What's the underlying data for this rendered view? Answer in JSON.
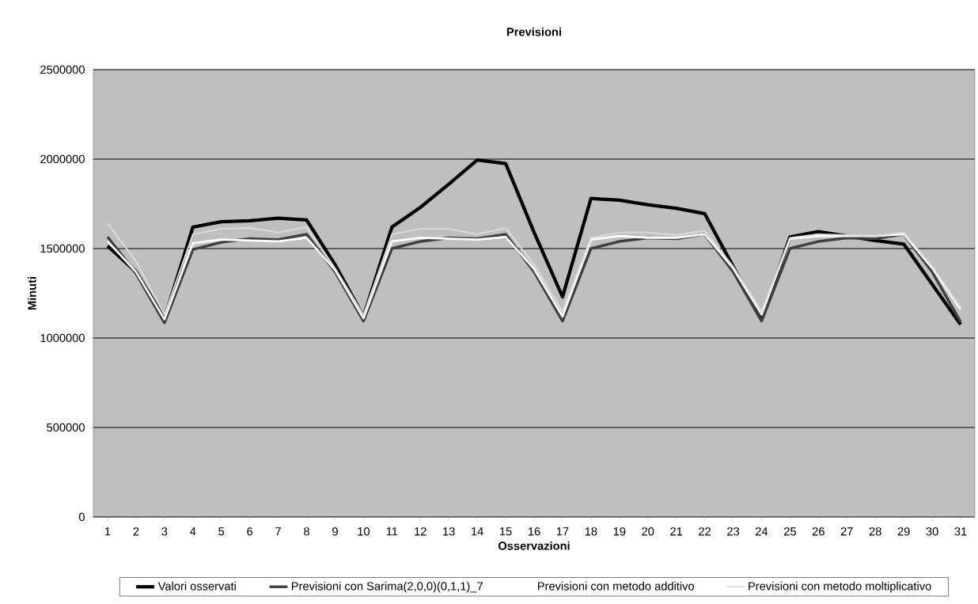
{
  "chart_data": {
    "type": "line",
    "title": "Previsioni",
    "xlabel": "Osservazioni",
    "ylabel": "Minuti",
    "categories": [
      "1",
      "2",
      "3",
      "4",
      "5",
      "6",
      "7",
      "8",
      "9",
      "10",
      "11",
      "12",
      "13",
      "14",
      "15",
      "16",
      "17",
      "18",
      "19",
      "20",
      "21",
      "22",
      "23",
      "24",
      "25",
      "26",
      "27",
      "28",
      "29",
      "30",
      "31"
    ],
    "ylim": [
      0,
      2500000
    ],
    "yticks": [
      0,
      500000,
      1000000,
      1500000,
      2000000,
      2500000
    ],
    "grid": "y",
    "legend": "bottom",
    "series": [
      {
        "name": "Valori osservati",
        "color": "#000000",
        "values": [
          1515000,
          1370000,
          1110000,
          1620000,
          1650000,
          1655000,
          1670000,
          1660000,
          1410000,
          1120000,
          1620000,
          1730000,
          1860000,
          1995000,
          1975000,
          1590000,
          1230000,
          1780000,
          1770000,
          1745000,
          1725000,
          1695000,
          1400000,
          1110000,
          1565000,
          1595000,
          1570000,
          1545000,
          1525000,
          1300000,
          1075000
        ]
      },
      {
        "name": "Previsioni con Sarima(2,0,0)(0,1,1)_7",
        "color": "#404040",
        "values": [
          1565000,
          1360000,
          1085000,
          1495000,
          1535000,
          1555000,
          1550000,
          1580000,
          1370000,
          1095000,
          1500000,
          1540000,
          1560000,
          1555000,
          1580000,
          1370000,
          1095000,
          1500000,
          1540000,
          1560000,
          1555000,
          1580000,
          1370000,
          1095000,
          1500000,
          1540000,
          1560000,
          1555000,
          1580000,
          1370000,
          1090000
        ]
      },
      {
        "name": "Previsioni con metodo additivo",
        "color": "#ffffff",
        "values": [
          1540000,
          1370000,
          1105000,
          1530000,
          1550000,
          1545000,
          1540000,
          1560000,
          1380000,
          1110000,
          1540000,
          1560000,
          1555000,
          1550000,
          1565000,
          1385000,
          1120000,
          1550000,
          1570000,
          1560000,
          1560000,
          1580000,
          1390000,
          1130000,
          1555000,
          1570000,
          1570000,
          1570000,
          1580000,
          1390000,
          1160000
        ]
      },
      {
        "name": "Previsioni con metodo moltiplicativo",
        "color": "#dcdcdc",
        "values": [
          1640000,
          1430000,
          1130000,
          1580000,
          1610000,
          1615000,
          1590000,
          1620000,
          1390000,
          1130000,
          1580000,
          1610000,
          1610000,
          1580000,
          1615000,
          1410000,
          1150000,
          1560000,
          1590000,
          1590000,
          1575000,
          1600000,
          1400000,
          1150000,
          1560000,
          1580000,
          1575000,
          1570000,
          1590000,
          1400000,
          1170000
        ]
      }
    ]
  }
}
